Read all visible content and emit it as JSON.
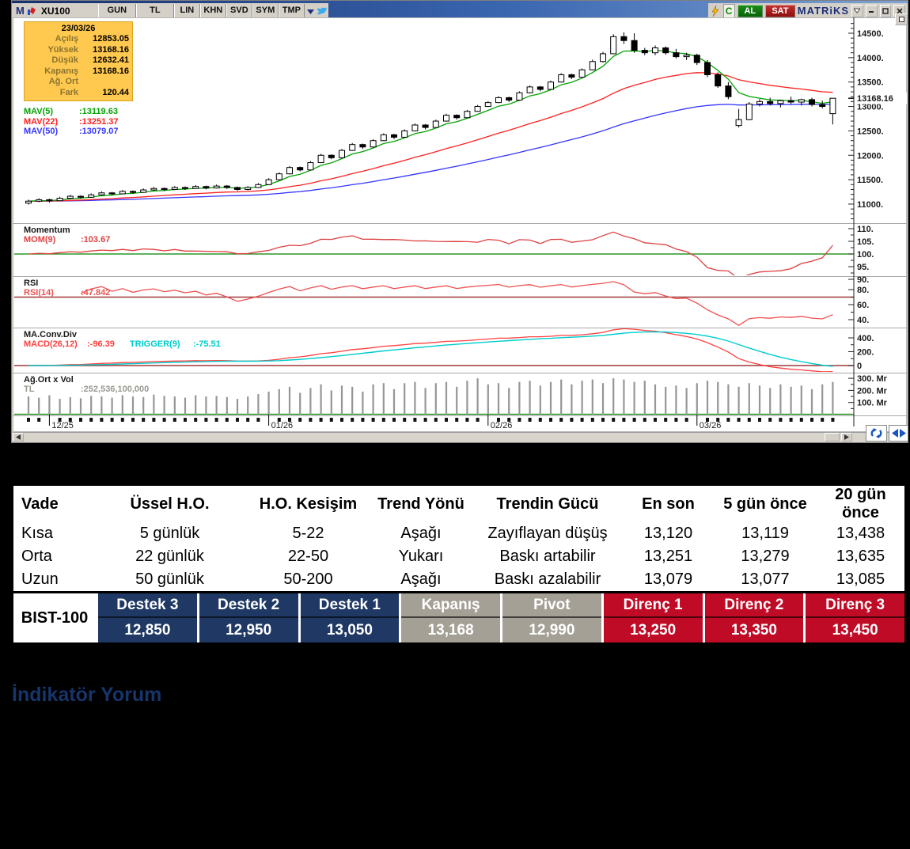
{
  "window": {
    "toolbar": {
      "logo": "M",
      "symbol": "XU100",
      "buttons": [
        "GUN",
        "TL",
        "LIN",
        "KHN",
        "SVD",
        "SYM",
        "TMP"
      ],
      "c_label": "C",
      "al_label": "AL",
      "sat_label": "SAT",
      "brand": "MATRiKS"
    }
  },
  "info_box": {
    "date": "23/03/26",
    "rows": [
      [
        "Açılış",
        "12853.05"
      ],
      [
        "Yüksek",
        "13168.16"
      ],
      [
        "Düşük",
        "12632.41"
      ],
      [
        "Kapanış",
        "13168.16"
      ],
      [
        "Ağ. Ort",
        ""
      ],
      [
        "Fark",
        "120.44"
      ]
    ]
  },
  "mav_legend": [
    {
      "label": "MAV(5)",
      "value": ":13119.63",
      "color": "#00A300"
    },
    {
      "label": "MAV(22)",
      "value": ":13251.37",
      "color": "#FF2020"
    },
    {
      "label": "MAV(50)",
      "value": ":13079.07",
      "color": "#3535FF"
    }
  ],
  "panels": {
    "momentum": {
      "title": "Momentum",
      "param": "MOM(9)",
      "value": ":103.67"
    },
    "rsi": {
      "title": "RSI",
      "param": "RSI(14)",
      "value": ":47.842"
    },
    "macd": {
      "title": "MA.Conv.Div",
      "param": "MACD(26,12)",
      "value": ":-96.39",
      "trigger_param": "TRIGGER(9)",
      "trigger_value": ":-75.51"
    },
    "volume": {
      "title": "Ağ.Ort x Vol",
      "param": "TL",
      "value": ":252,536,100,000"
    }
  },
  "colors": {
    "ma5": "#00A300",
    "ma22": "#FF2020",
    "ma50": "#3535FF",
    "momentum": "#E04040",
    "momentum_level": "#008000",
    "rsi": "#F05050",
    "rsi_level": "#A03838",
    "macd": "#FF4040",
    "trigger": "#00CCCC",
    "macd_zero": "#A03838",
    "volume_bar": "#969696",
    "volume_base": "#008000",
    "candle_up": "#FFFFFF",
    "candle_down": "#000000",
    "pivot_navy": "#1F3864",
    "pivot_gray": "#A5A096",
    "pivot_red": "#C00B27",
    "accent_navy": "#17356B",
    "info_gold": "#FFC84E"
  },
  "chart_data": {
    "type": "candlestick",
    "symbol": "XU100",
    "timeframe": "GUN",
    "price_axis": {
      "major_ticks": [
        11000,
        11500,
        12000,
        12500,
        13000,
        13500,
        14000,
        14500
      ],
      "minor_step": 100,
      "last_price": 13168.16,
      "last_price_label": "13168.16"
    },
    "x_labels": [
      {
        "label": "12/25",
        "index": 2
      },
      {
        "label": "01/26",
        "index": 23
      },
      {
        "label": "02/26",
        "index": 44
      },
      {
        "label": "03/26",
        "index": 64
      }
    ],
    "candles_ohlc": [
      [
        11020,
        11090,
        10990,
        11060
      ],
      [
        11060,
        11120,
        11040,
        11090
      ],
      [
        11090,
        11110,
        11030,
        11070
      ],
      [
        11070,
        11150,
        11060,
        11120
      ],
      [
        11120,
        11190,
        11100,
        11160
      ],
      [
        11160,
        11180,
        11110,
        11140
      ],
      [
        11140,
        11220,
        11130,
        11190
      ],
      [
        11190,
        11260,
        11170,
        11230
      ],
      [
        11230,
        11250,
        11180,
        11210
      ],
      [
        11210,
        11290,
        11200,
        11260
      ],
      [
        11260,
        11280,
        11210,
        11240
      ],
      [
        11240,
        11320,
        11230,
        11290
      ],
      [
        11290,
        11350,
        11270,
        11320
      ],
      [
        11320,
        11340,
        11270,
        11300
      ],
      [
        11300,
        11370,
        11290,
        11340
      ],
      [
        11340,
        11360,
        11290,
        11320
      ],
      [
        11320,
        11390,
        11310,
        11360
      ],
      [
        11360,
        11380,
        11300,
        11330
      ],
      [
        11330,
        11400,
        11320,
        11370
      ],
      [
        11370,
        11390,
        11310,
        11340
      ],
      [
        11340,
        11360,
        11270,
        11300
      ],
      [
        11300,
        11370,
        11280,
        11340
      ],
      [
        11340,
        11430,
        11330,
        11400
      ],
      [
        11400,
        11530,
        11390,
        11500
      ],
      [
        11500,
        11650,
        11490,
        11620
      ],
      [
        11620,
        11780,
        11610,
        11750
      ],
      [
        11750,
        11770,
        11670,
        11700
      ],
      [
        11700,
        11880,
        11690,
        11850
      ],
      [
        11850,
        12030,
        11840,
        12000
      ],
      [
        12000,
        12020,
        11920,
        11950
      ],
      [
        11950,
        12130,
        11940,
        12100
      ],
      [
        12100,
        12250,
        12090,
        12220
      ],
      [
        12220,
        12240,
        12130,
        12170
      ],
      [
        12170,
        12330,
        12160,
        12300
      ],
      [
        12300,
        12450,
        12290,
        12420
      ],
      [
        12420,
        12440,
        12330,
        12370
      ],
      [
        12370,
        12530,
        12360,
        12500
      ],
      [
        12500,
        12650,
        12490,
        12620
      ],
      [
        12620,
        12640,
        12530,
        12570
      ],
      [
        12570,
        12730,
        12560,
        12700
      ],
      [
        12700,
        12850,
        12690,
        12820
      ],
      [
        12820,
        12840,
        12730,
        12770
      ],
      [
        12770,
        12930,
        12760,
        12900
      ],
      [
        12900,
        13030,
        12890,
        13000
      ],
      [
        13000,
        13110,
        12990,
        13080
      ],
      [
        13080,
        13210,
        13070,
        13180
      ],
      [
        13180,
        13200,
        13090,
        13130
      ],
      [
        13130,
        13310,
        13120,
        13280
      ],
      [
        13280,
        13430,
        13270,
        13400
      ],
      [
        13400,
        13420,
        13310,
        13350
      ],
      [
        13350,
        13530,
        13340,
        13500
      ],
      [
        13500,
        13680,
        13490,
        13650
      ],
      [
        13650,
        13670,
        13560,
        13600
      ],
      [
        13600,
        13780,
        13590,
        13750
      ],
      [
        13750,
        13960,
        13740,
        13920
      ],
      [
        13920,
        14120,
        13900,
        14080
      ],
      [
        14080,
        14480,
        14070,
        14430
      ],
      [
        14430,
        14520,
        14280,
        14350
      ],
      [
        14350,
        14500,
        14100,
        14150
      ],
      [
        14150,
        14200,
        14050,
        14100
      ],
      [
        14100,
        14250,
        14050,
        14200
      ],
      [
        14200,
        14230,
        14060,
        14100
      ],
      [
        14100,
        14180,
        13980,
        14020
      ],
      [
        14020,
        14100,
        13950,
        14050
      ],
      [
        14050,
        14080,
        13850,
        13900
      ],
      [
        13900,
        13950,
        13600,
        13650
      ],
      [
        13650,
        13700,
        13380,
        13420
      ],
      [
        13420,
        13500,
        13150,
        13200
      ],
      [
        12610,
        12950,
        12570,
        12730
      ],
      [
        12730,
        13090,
        12720,
        13050
      ],
      [
        13050,
        13150,
        13000,
        13100
      ],
      [
        13100,
        13180,
        13020,
        13060
      ],
      [
        13060,
        13140,
        12980,
        13120
      ],
      [
        13120,
        13200,
        13050,
        13090
      ],
      [
        13090,
        13160,
        13020,
        13140
      ],
      [
        13140,
        13180,
        13000,
        13040
      ],
      [
        13040,
        13120,
        12960,
        13000
      ],
      [
        12853,
        13168,
        12632,
        13168
      ]
    ],
    "volume_mr": [
      150,
      140,
      160,
      130,
      145,
      135,
      155,
      150,
      140,
      160,
      150,
      145,
      165,
      155,
      150,
      140,
      160,
      150,
      155,
      145,
      130,
      150,
      170,
      190,
      210,
      230,
      180,
      220,
      250,
      200,
      240,
      230,
      190,
      250,
      260,
      210,
      260,
      270,
      220,
      260,
      270,
      230,
      280,
      300,
      250,
      260,
      220,
      270,
      280,
      240,
      270,
      290,
      250,
      280,
      290,
      260,
      300,
      290,
      270,
      280,
      250,
      230,
      240,
      220,
      260,
      280,
      270,
      250,
      230,
      260,
      240,
      220,
      250,
      230,
      240,
      210,
      250,
      270
    ],
    "momentum_axis_ticks": [
      110,
      105,
      100,
      95,
      90
    ],
    "rsi_axis_ticks": [
      80,
      60,
      40
    ],
    "macd_axis_ticks": [
      400,
      200,
      0
    ],
    "volume_axis_ticks": [
      [
        300,
        "300. Mr"
      ],
      [
        200,
        "200. Mr"
      ],
      [
        100,
        "100. Mr"
      ]
    ],
    "indicators": {
      "mav_periods": [
        5,
        22,
        50
      ],
      "momentum_period": 9,
      "momentum_level": 100,
      "momentum_last": 103.67,
      "rsi_period": 14,
      "rsi_level": 70,
      "rsi_last": 47.842,
      "macd_fast": 12,
      "macd_slow": 26,
      "macd_trigger": 9,
      "macd_last": -96.39,
      "trigger_last": -75.51,
      "volume_last_tl": "252,536,100,000"
    }
  },
  "trend_table": {
    "headers": [
      "Vade",
      "Üssel H.O.",
      "H.O. Kesişim",
      "Trend Yönü",
      "Trendin Gücü",
      "En son",
      "5 gün önce",
      "20 gün önce"
    ],
    "rows": [
      [
        "Kısa",
        "5 günlük",
        "5-22",
        "Aşağı",
        "Zayıflayan düşüş",
        "13,120",
        "13,119",
        "13,438"
      ],
      [
        "Orta",
        "22 günlük",
        "22-50",
        "Yukarı",
        "Baskı artabilir",
        "13,251",
        "13,279",
        "13,635"
      ],
      [
        "Uzun",
        "50 günlük",
        "50-200",
        "Aşağı",
        "Baskı azalabilir",
        "13,079",
        "13,077",
        "13,085"
      ]
    ]
  },
  "pivot_table": {
    "title": "BIST-100",
    "cells": [
      {
        "label": "Destek 3",
        "value": "12,850",
        "tone": "navy"
      },
      {
        "label": "Destek 2",
        "value": "12,950",
        "tone": "navy"
      },
      {
        "label": "Destek 1",
        "value": "13,050",
        "tone": "navy"
      },
      {
        "label": "Kapanış",
        "value": "13,168",
        "tone": "gray"
      },
      {
        "label": "Pivot",
        "value": "12,990",
        "tone": "gray"
      },
      {
        "label": "Direnç 1",
        "value": "13,250",
        "tone": "red"
      },
      {
        "label": "Direnç 2",
        "value": "13,350",
        "tone": "red"
      },
      {
        "label": "Direnç 3",
        "value": "13,450",
        "tone": "red"
      }
    ]
  },
  "section_title": "İndikatör Yorum"
}
